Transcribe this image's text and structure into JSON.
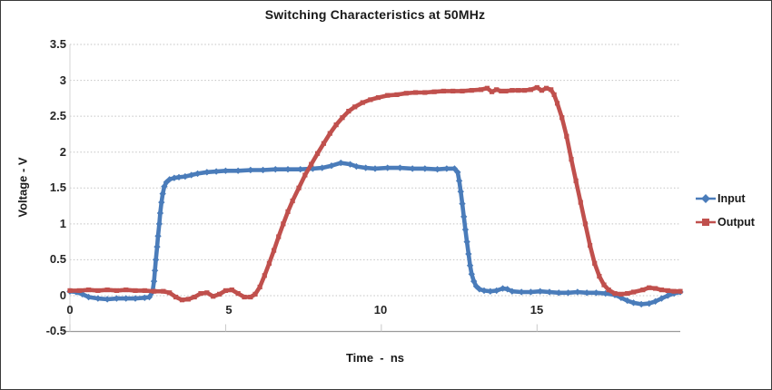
{
  "chart_data": {
    "type": "line",
    "title": "Switching Characteristics at 50MHz",
    "xlabel": "Time  -  ns",
    "ylabel": "Voltage - V",
    "xlim": [
      0,
      19.6
    ],
    "ylim": [
      -0.5,
      3.5
    ],
    "x_ticks": [
      0,
      5,
      10,
      15
    ],
    "x_tick_labels": [
      "0",
      "5",
      "10",
      "15"
    ],
    "y_ticks": [
      3.5,
      3,
      2.5,
      2,
      1.5,
      1,
      0.5,
      0,
      -0.5
    ],
    "y_tick_labels": [
      "3.5",
      "3",
      "2.5",
      "2",
      "1.5",
      "1",
      "0.5",
      "0",
      "-0.5"
    ],
    "grid": "dotted horizontal",
    "legend_position": "right",
    "colors": {
      "input": "#4a7cba",
      "output": "#c0504d",
      "gridline": "#c3c3c3",
      "axis": "#9b9b9b",
      "text": "#262626"
    },
    "series": [
      {
        "name": "Input",
        "color": "#4a7cba",
        "marker": "diamond",
        "points": [
          [
            0,
            0.06
          ],
          [
            0.2,
            0.05
          ],
          [
            0.4,
            0.02
          ],
          [
            0.6,
            -0.02
          ],
          [
            0.9,
            -0.04
          ],
          [
            1.2,
            -0.05
          ],
          [
            1.5,
            -0.04
          ],
          [
            1.8,
            -0.04
          ],
          [
            2.1,
            -0.04
          ],
          [
            2.4,
            -0.03
          ],
          [
            2.55,
            -0.02
          ],
          [
            2.65,
            0.05
          ],
          [
            2.7,
            0.2
          ],
          [
            2.73,
            0.35
          ],
          [
            2.76,
            0.5
          ],
          [
            2.8,
            0.68
          ],
          [
            2.83,
            0.83
          ],
          [
            2.87,
            1.0
          ],
          [
            2.9,
            1.15
          ],
          [
            2.94,
            1.3
          ],
          [
            2.98,
            1.42
          ],
          [
            3.03,
            1.52
          ],
          [
            3.1,
            1.58
          ],
          [
            3.2,
            1.62
          ],
          [
            3.35,
            1.64
          ],
          [
            3.5,
            1.65
          ],
          [
            3.7,
            1.66
          ],
          [
            3.9,
            1.68
          ],
          [
            4.1,
            1.7
          ],
          [
            4.4,
            1.72
          ],
          [
            4.7,
            1.73
          ],
          [
            5.0,
            1.74
          ],
          [
            5.4,
            1.74
          ],
          [
            5.8,
            1.75
          ],
          [
            6.2,
            1.75
          ],
          [
            6.6,
            1.76
          ],
          [
            7.0,
            1.76
          ],
          [
            7.4,
            1.76
          ],
          [
            7.8,
            1.77
          ],
          [
            8.1,
            1.78
          ],
          [
            8.4,
            1.81
          ],
          [
            8.7,
            1.85
          ],
          [
            9.0,
            1.83
          ],
          [
            9.2,
            1.8
          ],
          [
            9.5,
            1.78
          ],
          [
            9.8,
            1.77
          ],
          [
            10.2,
            1.78
          ],
          [
            10.6,
            1.78
          ],
          [
            11.0,
            1.77
          ],
          [
            11.4,
            1.77
          ],
          [
            11.8,
            1.76
          ],
          [
            12.1,
            1.77
          ],
          [
            12.35,
            1.77
          ],
          [
            12.45,
            1.72
          ],
          [
            12.5,
            1.6
          ],
          [
            12.55,
            1.45
          ],
          [
            12.6,
            1.28
          ],
          [
            12.65,
            1.1
          ],
          [
            12.7,
            0.92
          ],
          [
            12.75,
            0.75
          ],
          [
            12.8,
            0.58
          ],
          [
            12.85,
            0.42
          ],
          [
            12.9,
            0.3
          ],
          [
            12.97,
            0.2
          ],
          [
            13.05,
            0.13
          ],
          [
            13.15,
            0.09
          ],
          [
            13.3,
            0.07
          ],
          [
            13.5,
            0.06
          ],
          [
            13.7,
            0.07
          ],
          [
            13.9,
            0.1
          ],
          [
            14.05,
            0.09
          ],
          [
            14.2,
            0.06
          ],
          [
            14.5,
            0.05
          ],
          [
            14.8,
            0.05
          ],
          [
            15.1,
            0.06
          ],
          [
            15.4,
            0.05
          ],
          [
            15.7,
            0.04
          ],
          [
            16.0,
            0.04
          ],
          [
            16.3,
            0.05
          ],
          [
            16.6,
            0.04
          ],
          [
            16.9,
            0.04
          ],
          [
            17.2,
            0.03
          ],
          [
            17.5,
            0.01
          ],
          [
            17.7,
            -0.03
          ],
          [
            17.9,
            -0.07
          ],
          [
            18.1,
            -0.1
          ],
          [
            18.35,
            -0.12
          ],
          [
            18.6,
            -0.11
          ],
          [
            18.8,
            -0.08
          ],
          [
            19.0,
            -0.04
          ],
          [
            19.2,
            0.0
          ],
          [
            19.4,
            0.03
          ],
          [
            19.6,
            0.05
          ]
        ]
      },
      {
        "name": "Output",
        "color": "#c0504d",
        "marker": "square",
        "points": [
          [
            0,
            0.07
          ],
          [
            0.3,
            0.07
          ],
          [
            0.6,
            0.08
          ],
          [
            0.9,
            0.07
          ],
          [
            1.2,
            0.08
          ],
          [
            1.5,
            0.07
          ],
          [
            1.8,
            0.08
          ],
          [
            2.1,
            0.07
          ],
          [
            2.4,
            0.07
          ],
          [
            2.7,
            0.06
          ],
          [
            3.0,
            0.06
          ],
          [
            3.2,
            0.04
          ],
          [
            3.4,
            -0.02
          ],
          [
            3.6,
            -0.06
          ],
          [
            3.8,
            -0.05
          ],
          [
            4.0,
            -0.02
          ],
          [
            4.2,
            0.03
          ],
          [
            4.4,
            0.04
          ],
          [
            4.6,
            -0.01
          ],
          [
            4.8,
            0.02
          ],
          [
            5.0,
            0.07
          ],
          [
            5.2,
            0.08
          ],
          [
            5.4,
            0.03
          ],
          [
            5.6,
            -0.02
          ],
          [
            5.8,
            -0.02
          ],
          [
            5.95,
            0.02
          ],
          [
            6.1,
            0.12
          ],
          [
            6.25,
            0.28
          ],
          [
            6.4,
            0.45
          ],
          [
            6.55,
            0.63
          ],
          [
            6.7,
            0.82
          ],
          [
            6.85,
            1.0
          ],
          [
            7.0,
            1.17
          ],
          [
            7.15,
            1.32
          ],
          [
            7.35,
            1.5
          ],
          [
            7.55,
            1.68
          ],
          [
            7.75,
            1.83
          ],
          [
            7.95,
            1.98
          ],
          [
            8.15,
            2.12
          ],
          [
            8.35,
            2.26
          ],
          [
            8.55,
            2.38
          ],
          [
            8.75,
            2.48
          ],
          [
            8.95,
            2.57
          ],
          [
            9.15,
            2.63
          ],
          [
            9.4,
            2.69
          ],
          [
            9.65,
            2.73
          ],
          [
            9.9,
            2.76
          ],
          [
            10.2,
            2.79
          ],
          [
            10.5,
            2.8
          ],
          [
            10.8,
            2.82
          ],
          [
            11.1,
            2.83
          ],
          [
            11.4,
            2.83
          ],
          [
            11.7,
            2.84
          ],
          [
            12.0,
            2.85
          ],
          [
            12.3,
            2.85
          ],
          [
            12.6,
            2.85
          ],
          [
            12.9,
            2.86
          ],
          [
            13.2,
            2.87
          ],
          [
            13.4,
            2.89
          ],
          [
            13.55,
            2.84
          ],
          [
            13.7,
            2.87
          ],
          [
            13.85,
            2.85
          ],
          [
            14.0,
            2.85
          ],
          [
            14.2,
            2.86
          ],
          [
            14.4,
            2.86
          ],
          [
            14.6,
            2.86
          ],
          [
            14.8,
            2.87
          ],
          [
            15.0,
            2.9
          ],
          [
            15.15,
            2.86
          ],
          [
            15.3,
            2.89
          ],
          [
            15.45,
            2.87
          ],
          [
            15.55,
            2.8
          ],
          [
            15.65,
            2.68
          ],
          [
            15.8,
            2.48
          ],
          [
            15.95,
            2.22
          ],
          [
            16.1,
            1.9
          ],
          [
            16.25,
            1.6
          ],
          [
            16.4,
            1.3
          ],
          [
            16.55,
            1.0
          ],
          [
            16.7,
            0.7
          ],
          [
            16.85,
            0.45
          ],
          [
            17.0,
            0.27
          ],
          [
            17.15,
            0.15
          ],
          [
            17.3,
            0.08
          ],
          [
            17.5,
            0.03
          ],
          [
            17.7,
            0.02
          ],
          [
            17.9,
            0.03
          ],
          [
            18.1,
            0.05
          ],
          [
            18.4,
            0.08
          ],
          [
            18.6,
            0.11
          ],
          [
            18.8,
            0.1
          ],
          [
            19.0,
            0.08
          ],
          [
            19.2,
            0.07
          ],
          [
            19.4,
            0.06
          ],
          [
            19.6,
            0.06
          ]
        ]
      }
    ],
    "legend": [
      {
        "label": "Input"
      },
      {
        "label": "Output"
      }
    ]
  }
}
